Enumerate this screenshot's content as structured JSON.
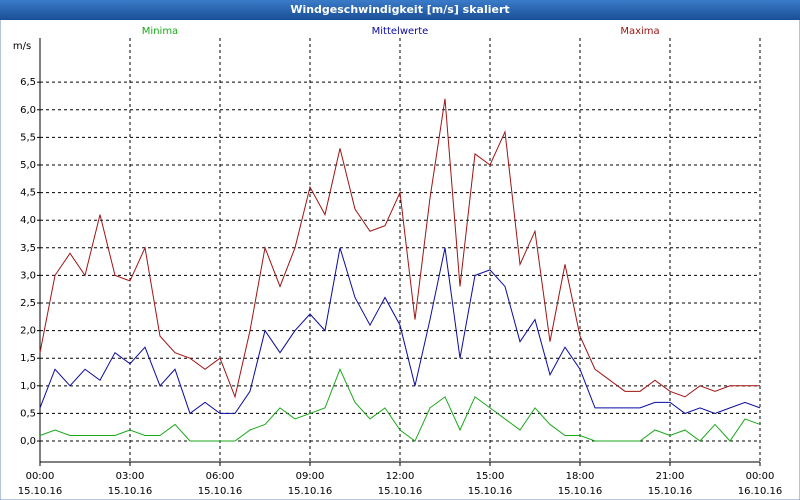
{
  "chart_data": {
    "type": "line",
    "title": "Windgeschwindigkeit [m/s] skaliert",
    "ylabel": "m/s",
    "x": [
      0,
      0.5,
      1,
      1.5,
      2,
      2.5,
      3,
      3.5,
      4,
      4.5,
      5,
      5.5,
      6,
      6.5,
      7,
      7.5,
      8,
      8.5,
      9,
      9.5,
      10,
      10.5,
      11,
      11.5,
      12,
      12.5,
      13,
      13.5,
      14,
      14.5,
      15,
      15.5,
      16,
      16.5,
      17,
      17.5,
      18,
      18.5,
      19,
      19.5,
      20,
      20.5,
      21,
      21.5,
      22,
      22.5,
      23,
      23.5,
      24
    ],
    "series": [
      {
        "name": "Minima",
        "color": "#1aa81a",
        "values": [
          0.1,
          0.2,
          0.1,
          0.1,
          0.1,
          0.1,
          0.2,
          0.1,
          0.1,
          0.3,
          0.0,
          0.0,
          0.0,
          0.0,
          0.2,
          0.3,
          0.6,
          0.4,
          0.5,
          0.6,
          1.3,
          0.7,
          0.4,
          0.6,
          0.2,
          0.0,
          0.6,
          0.8,
          0.2,
          0.8,
          0.6,
          0.4,
          0.2,
          0.6,
          0.3,
          0.1,
          0.1,
          0.0,
          0.0,
          0.0,
          0.0,
          0.2,
          0.1,
          0.2,
          0.0,
          0.3,
          0.0,
          0.4,
          0.3
        ]
      },
      {
        "name": "Mittelwerte",
        "color": "#0a0aa0",
        "values": [
          0.6,
          1.3,
          1.0,
          1.3,
          1.1,
          1.6,
          1.4,
          1.7,
          1.0,
          1.3,
          0.5,
          0.7,
          0.5,
          0.5,
          0.9,
          2.0,
          1.6,
          2.0,
          2.3,
          2.0,
          3.5,
          2.6,
          2.1,
          2.6,
          2.1,
          1.0,
          2.2,
          3.5,
          1.5,
          3.0,
          3.1,
          2.8,
          1.8,
          2.2,
          1.2,
          1.7,
          1.3,
          0.6,
          0.6,
          0.6,
          0.6,
          0.7,
          0.7,
          0.5,
          0.6,
          0.5,
          0.6,
          0.7,
          0.6
        ]
      },
      {
        "name": "Maxima",
        "color": "#a01414",
        "values": [
          1.6,
          3.0,
          3.4,
          3.0,
          4.1,
          3.0,
          2.9,
          3.5,
          1.9,
          1.6,
          1.5,
          1.3,
          1.5,
          0.8,
          2.0,
          3.5,
          2.8,
          3.5,
          4.6,
          4.1,
          5.3,
          4.2,
          3.8,
          3.9,
          4.5,
          2.2,
          4.4,
          6.2,
          2.8,
          5.2,
          5.0,
          5.6,
          3.2,
          3.8,
          1.8,
          3.2,
          1.9,
          1.3,
          1.1,
          0.9,
          0.9,
          1.1,
          0.9,
          0.8,
          1.0,
          0.9,
          1.0,
          1.0,
          1.0
        ]
      }
    ],
    "xlim": [
      0,
      24
    ],
    "xticks": [
      {
        "value": 0,
        "label": [
          "00:00",
          "15.10.16"
        ]
      },
      {
        "value": 3,
        "label": [
          "03:00",
          "15.10.16"
        ]
      },
      {
        "value": 6,
        "label": [
          "06:00",
          "15.10.16"
        ]
      },
      {
        "value": 9,
        "label": [
          "09:00",
          "15.10.16"
        ]
      },
      {
        "value": 12,
        "label": [
          "12:00",
          "15.10.16"
        ]
      },
      {
        "value": 15,
        "label": [
          "15:00",
          "15.10.16"
        ]
      },
      {
        "value": 18,
        "label": [
          "18:00",
          "15.10.16"
        ]
      },
      {
        "value": 21,
        "label": [
          "21:00",
          "15.10.16"
        ]
      },
      {
        "value": 24,
        "label": [
          "00:00",
          "16.10.16"
        ]
      }
    ],
    "ylim": [
      -0.38,
      7.3
    ],
    "yticks": [
      {
        "value": 0,
        "label": "0,0"
      },
      {
        "value": 0.5,
        "label": "0,5"
      },
      {
        "value": 1,
        "label": "1,0"
      },
      {
        "value": 1.5,
        "label": "1,5"
      },
      {
        "value": 2,
        "label": "2,0"
      },
      {
        "value": 2.5,
        "label": "2,5"
      },
      {
        "value": 3,
        "label": "3,0"
      },
      {
        "value": 3.5,
        "label": "3,5"
      },
      {
        "value": 4,
        "label": "4,0"
      },
      {
        "value": 4.5,
        "label": "4,5"
      },
      {
        "value": 5,
        "label": "5,0"
      },
      {
        "value": 5.5,
        "label": "5,5"
      },
      {
        "value": 6,
        "label": "6,0"
      },
      {
        "value": 6.5,
        "label": "6,5"
      }
    ],
    "grid": true
  }
}
